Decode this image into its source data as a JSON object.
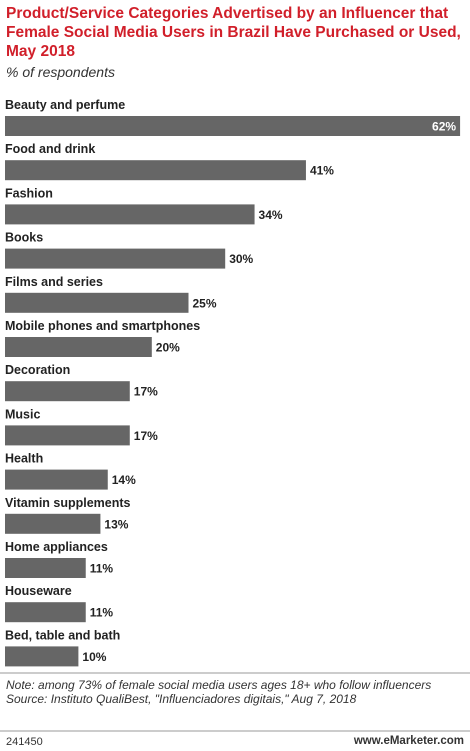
{
  "chart_data": {
    "type": "bar",
    "title": "Product/Service Categories Advertised by an Influencer that Female Social Media Users in Brazil Have Purchased or Used, May 2018",
    "subtitle": "% of respondents",
    "categories": [
      "Beauty and perfume",
      "Food and drink",
      "Fashion",
      "Books",
      "Films and series",
      "Mobile phones and smartphones",
      "Decoration",
      "Music",
      "Health",
      "Vitamin supplements",
      "Home appliances",
      "Houseware",
      "Bed, table and bath"
    ],
    "values": [
      62,
      41,
      34,
      30,
      25,
      20,
      17,
      17,
      14,
      13,
      11,
      11,
      10
    ],
    "value_labels": [
      "62%",
      "41%",
      "34%",
      "30%",
      "25%",
      "20%",
      "17%",
      "17%",
      "14%",
      "13%",
      "11%",
      "11%",
      "10%"
    ],
    "color": "#666666",
    "note": "Note: among 73% of female social media users ages 18+ who follow influencers",
    "source": "Source: Instituto QualiBest, \"Influenciadores digitais,\" Aug 7, 2018",
    "chart_id": "241450",
    "brand": "www.eMarketer.com"
  }
}
